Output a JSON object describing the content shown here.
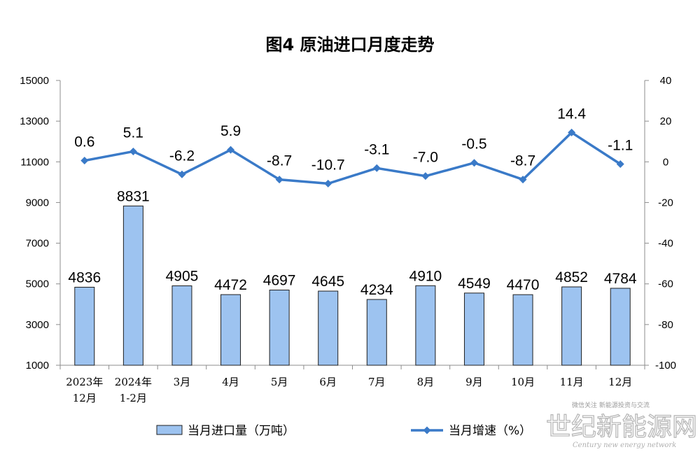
{
  "chart_data": {
    "type": "bar",
    "title": "图4  原油进口月度走势",
    "categories": [
      [
        "2023年",
        "12月"
      ],
      [
        "2024年",
        "1-2月"
      ],
      [
        "3月"
      ],
      [
        "4月"
      ],
      [
        "5月"
      ],
      [
        "6月"
      ],
      [
        "7月"
      ],
      [
        "8月"
      ],
      [
        "9月"
      ],
      [
        "10月"
      ],
      [
        "11月"
      ],
      [
        "12月"
      ]
    ],
    "series": [
      {
        "name": "当月进口量（万吨）",
        "type": "bar",
        "axis": "left",
        "color": "#9dc3f0",
        "values": [
          4836,
          8831,
          4905,
          4472,
          4697,
          4645,
          4234,
          4910,
          4549,
          4470,
          4852,
          4784
        ]
      },
      {
        "name": "当月增速（%）",
        "type": "line",
        "axis": "right",
        "color": "#3a7ac8",
        "values": [
          0.6,
          5.1,
          -6.2,
          5.9,
          -8.7,
          -10.7,
          -3.1,
          -7.0,
          -0.5,
          -8.7,
          14.4,
          -1.1
        ]
      }
    ],
    "y_left": {
      "min": 1000,
      "max": 15000,
      "ticks": [
        1000,
        3000,
        5000,
        7000,
        9000,
        11000,
        13000,
        15000
      ]
    },
    "y_right": {
      "min": -100,
      "max": 40,
      "ticks": [
        -100,
        -80,
        -60,
        -40,
        -20,
        0,
        20,
        40
      ]
    },
    "legend_position": "bottom",
    "grid": false
  },
  "watermark": {
    "main": "世纪新能源网",
    "sub": "Century new energy network",
    "top": "微信关注 新能源投资与交流"
  }
}
